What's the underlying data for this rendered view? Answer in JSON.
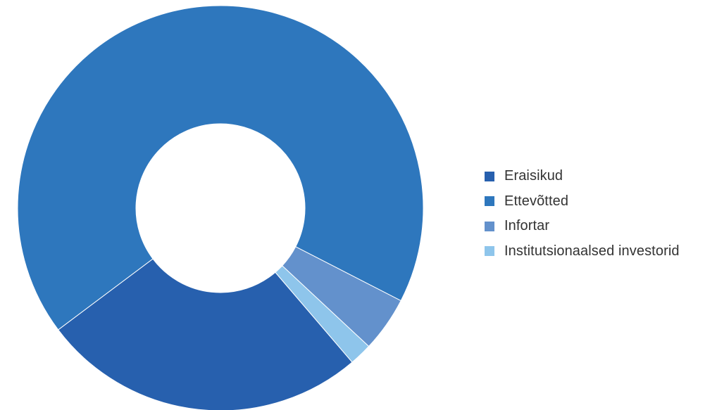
{
  "chart_data": {
    "type": "pie",
    "donut": true,
    "title": "",
    "legend_position": "right",
    "slices": [
      {
        "label": "Eraisikud",
        "value": 26.0,
        "color": "#2760AE"
      },
      {
        "label": "Ettevõtted",
        "value": 67.8,
        "color": "#2E77BD"
      },
      {
        "label": "Infortar",
        "value": 4.4,
        "color": "#6391CC"
      },
      {
        "label": "Institutsionaalsed investorid",
        "value": 1.8,
        "color": "#8EC5EB"
      }
    ]
  }
}
